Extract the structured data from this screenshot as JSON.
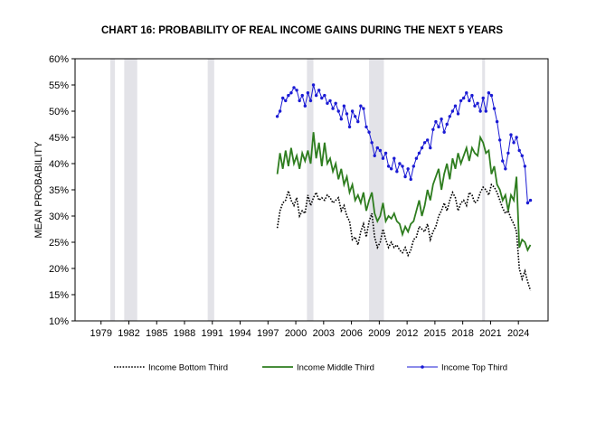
{
  "chart_data": {
    "type": "line",
    "title": "CHART 16: PROBABILITY OF REAL INCOME GAINS DURING THE NEXT 5 YEARS",
    "ylabel": "MEAN PROBABILITY",
    "xlabel": "",
    "xlim": [
      1976.2,
      2027.2
    ],
    "ylim": [
      0.1,
      0.6
    ],
    "x_ticks": [
      1979,
      1982,
      1985,
      1988,
      1991,
      1994,
      1997,
      2000,
      2003,
      2006,
      2009,
      2012,
      2015,
      2018,
      2021,
      2024
    ],
    "x_tick_labels": [
      "1979",
      "1982",
      "1985",
      "1988",
      "1991",
      "1994",
      "1997",
      "2000",
      "2003",
      "2006",
      "2009",
      "2012",
      "2015",
      "2018",
      "2021",
      "2024"
    ],
    "y_ticks": [
      0.1,
      0.15,
      0.2,
      0.25,
      0.3,
      0.35,
      0.4,
      0.45,
      0.5,
      0.55,
      0.6
    ],
    "y_tick_labels": [
      "10%",
      "15%",
      "20%",
      "25%",
      "30%",
      "35%",
      "40%",
      "45%",
      "50%",
      "55%",
      "60%"
    ],
    "grid": false,
    "legend_position": "bottom",
    "recessions": [
      [
        1980.0,
        1980.5
      ],
      [
        1981.5,
        1982.9
      ],
      [
        1990.5,
        1991.2
      ],
      [
        2001.2,
        2001.9
      ],
      [
        2007.9,
        2009.5
      ],
      [
        2020.1,
        2020.4
      ]
    ],
    "recession_color": "#e3e3e8",
    "series": [
      {
        "name": "Income Bottom Third",
        "color": "#000000",
        "style": "dotted",
        "x": [
          1998.0,
          1998.3,
          1998.6,
          1998.9,
          1999.2,
          1999.5,
          1999.8,
          2000.1,
          2000.4,
          2000.7,
          2001.0,
          2001.3,
          2001.6,
          2001.9,
          2002.2,
          2002.5,
          2002.8,
          2003.1,
          2003.4,
          2003.7,
          2004.0,
          2004.3,
          2004.6,
          2004.9,
          2005.2,
          2005.5,
          2005.8,
          2006.1,
          2006.4,
          2006.7,
          2007.0,
          2007.3,
          2007.6,
          2007.9,
          2008.2,
          2008.5,
          2008.8,
          2009.1,
          2009.4,
          2009.7,
          2010.0,
          2010.3,
          2010.6,
          2010.9,
          2011.2,
          2011.5,
          2011.8,
          2012.1,
          2012.4,
          2012.7,
          2013.0,
          2013.3,
          2013.6,
          2013.9,
          2014.2,
          2014.5,
          2014.8,
          2015.1,
          2015.4,
          2015.7,
          2016.0,
          2016.3,
          2016.6,
          2016.9,
          2017.2,
          2017.5,
          2017.8,
          2018.1,
          2018.4,
          2018.7,
          2019.0,
          2019.3,
          2019.6,
          2019.9,
          2020.2,
          2020.5,
          2020.8,
          2021.1,
          2021.4,
          2021.7,
          2022.0,
          2022.3,
          2022.6,
          2022.9,
          2023.2,
          2023.5,
          2023.8,
          2024.1,
          2024.4,
          2024.7,
          2025.0,
          2025.3
        ],
        "y": [
          0.277,
          0.31,
          0.325,
          0.33,
          0.348,
          0.33,
          0.32,
          0.335,
          0.3,
          0.31,
          0.305,
          0.34,
          0.32,
          0.335,
          0.345,
          0.33,
          0.335,
          0.33,
          0.34,
          0.335,
          0.325,
          0.33,
          0.335,
          0.31,
          0.32,
          0.3,
          0.29,
          0.255,
          0.26,
          0.245,
          0.27,
          0.285,
          0.26,
          0.29,
          0.305,
          0.26,
          0.24,
          0.25,
          0.275,
          0.255,
          0.24,
          0.25,
          0.24,
          0.245,
          0.235,
          0.23,
          0.24,
          0.225,
          0.235,
          0.255,
          0.26,
          0.28,
          0.275,
          0.27,
          0.285,
          0.255,
          0.27,
          0.28,
          0.3,
          0.31,
          0.325,
          0.31,
          0.33,
          0.345,
          0.335,
          0.31,
          0.325,
          0.33,
          0.32,
          0.345,
          0.34,
          0.325,
          0.33,
          0.345,
          0.355,
          0.35,
          0.34,
          0.36,
          0.355,
          0.345,
          0.33,
          0.315,
          0.305,
          0.31,
          0.295,
          0.285,
          0.27,
          0.2,
          0.18,
          0.195,
          0.175,
          0.158
        ]
      },
      {
        "name": "Income Middle Third",
        "color": "#2e7d1f",
        "style": "solid",
        "x": [
          1998.0,
          1998.3,
          1998.6,
          1998.9,
          1999.2,
          1999.5,
          1999.8,
          2000.1,
          2000.4,
          2000.7,
          2001.0,
          2001.3,
          2001.6,
          2001.9,
          2002.2,
          2002.5,
          2002.8,
          2003.1,
          2003.4,
          2003.7,
          2004.0,
          2004.3,
          2004.6,
          2004.9,
          2005.2,
          2005.5,
          2005.8,
          2006.1,
          2006.4,
          2006.7,
          2007.0,
          2007.3,
          2007.6,
          2007.9,
          2008.2,
          2008.5,
          2008.8,
          2009.1,
          2009.4,
          2009.7,
          2010.0,
          2010.3,
          2010.6,
          2010.9,
          2011.2,
          2011.5,
          2011.8,
          2012.1,
          2012.4,
          2012.7,
          2013.0,
          2013.3,
          2013.6,
          2013.9,
          2014.2,
          2014.5,
          2014.8,
          2015.1,
          2015.4,
          2015.7,
          2016.0,
          2016.3,
          2016.6,
          2016.9,
          2017.2,
          2017.5,
          2017.8,
          2018.1,
          2018.4,
          2018.7,
          2019.0,
          2019.3,
          2019.6,
          2019.9,
          2020.2,
          2020.5,
          2020.8,
          2021.1,
          2021.4,
          2021.7,
          2022.0,
          2022.3,
          2022.6,
          2022.9,
          2023.2,
          2023.5,
          2023.8,
          2024.1,
          2024.4,
          2024.7,
          2025.0,
          2025.3
        ],
        "y": [
          0.38,
          0.42,
          0.39,
          0.425,
          0.395,
          0.43,
          0.4,
          0.415,
          0.39,
          0.42,
          0.405,
          0.425,
          0.4,
          0.46,
          0.41,
          0.44,
          0.395,
          0.44,
          0.4,
          0.41,
          0.385,
          0.4,
          0.37,
          0.39,
          0.36,
          0.375,
          0.345,
          0.36,
          0.33,
          0.34,
          0.325,
          0.345,
          0.31,
          0.33,
          0.345,
          0.305,
          0.29,
          0.3,
          0.325,
          0.29,
          0.3,
          0.295,
          0.305,
          0.29,
          0.285,
          0.265,
          0.28,
          0.27,
          0.285,
          0.29,
          0.31,
          0.33,
          0.3,
          0.32,
          0.35,
          0.33,
          0.36,
          0.375,
          0.39,
          0.35,
          0.38,
          0.4,
          0.37,
          0.41,
          0.39,
          0.42,
          0.4,
          0.415,
          0.43,
          0.405,
          0.43,
          0.42,
          0.415,
          0.45,
          0.44,
          0.42,
          0.425,
          0.38,
          0.395,
          0.36,
          0.35,
          0.33,
          0.34,
          0.31,
          0.34,
          0.33,
          0.375,
          0.24,
          0.255,
          0.25,
          0.235,
          0.245
        ]
      },
      {
        "name": "Income Top Third",
        "color": "#1a1ad4",
        "style": "solid-markers",
        "x": [
          1998.0,
          1998.3,
          1998.6,
          1998.9,
          1999.2,
          1999.5,
          1999.8,
          2000.1,
          2000.4,
          2000.7,
          2001.0,
          2001.3,
          2001.6,
          2001.9,
          2002.2,
          2002.5,
          2002.8,
          2003.1,
          2003.4,
          2003.7,
          2004.0,
          2004.3,
          2004.6,
          2004.9,
          2005.2,
          2005.5,
          2005.8,
          2006.1,
          2006.4,
          2006.7,
          2007.0,
          2007.3,
          2007.6,
          2007.9,
          2008.2,
          2008.5,
          2008.8,
          2009.1,
          2009.4,
          2009.7,
          2010.0,
          2010.3,
          2010.6,
          2010.9,
          2011.2,
          2011.5,
          2011.8,
          2012.1,
          2012.4,
          2012.7,
          2013.0,
          2013.3,
          2013.6,
          2013.9,
          2014.2,
          2014.5,
          2014.8,
          2015.1,
          2015.4,
          2015.7,
          2016.0,
          2016.3,
          2016.6,
          2016.9,
          2017.2,
          2017.5,
          2017.8,
          2018.1,
          2018.4,
          2018.7,
          2019.0,
          2019.3,
          2019.6,
          2019.9,
          2020.2,
          2020.5,
          2020.8,
          2021.1,
          2021.4,
          2021.7,
          2022.0,
          2022.3,
          2022.6,
          2022.9,
          2023.2,
          2023.5,
          2023.8,
          2024.1,
          2024.4,
          2024.7,
          2025.0,
          2025.3
        ],
        "y": [
          0.49,
          0.5,
          0.525,
          0.52,
          0.53,
          0.535,
          0.545,
          0.54,
          0.52,
          0.53,
          0.51,
          0.535,
          0.52,
          0.55,
          0.53,
          0.54,
          0.525,
          0.53,
          0.515,
          0.52,
          0.505,
          0.515,
          0.5,
          0.485,
          0.51,
          0.495,
          0.47,
          0.5,
          0.49,
          0.48,
          0.51,
          0.505,
          0.47,
          0.46,
          0.44,
          0.415,
          0.43,
          0.425,
          0.41,
          0.42,
          0.395,
          0.39,
          0.41,
          0.385,
          0.4,
          0.395,
          0.375,
          0.39,
          0.37,
          0.395,
          0.41,
          0.42,
          0.43,
          0.44,
          0.445,
          0.43,
          0.465,
          0.48,
          0.47,
          0.485,
          0.46,
          0.475,
          0.49,
          0.5,
          0.51,
          0.495,
          0.52,
          0.525,
          0.535,
          0.52,
          0.53,
          0.51,
          0.515,
          0.5,
          0.525,
          0.5,
          0.535,
          0.53,
          0.505,
          0.48,
          0.445,
          0.405,
          0.39,
          0.42,
          0.455,
          0.44,
          0.45,
          0.425,
          0.415,
          0.395,
          0.325,
          0.33
        ]
      }
    ]
  }
}
